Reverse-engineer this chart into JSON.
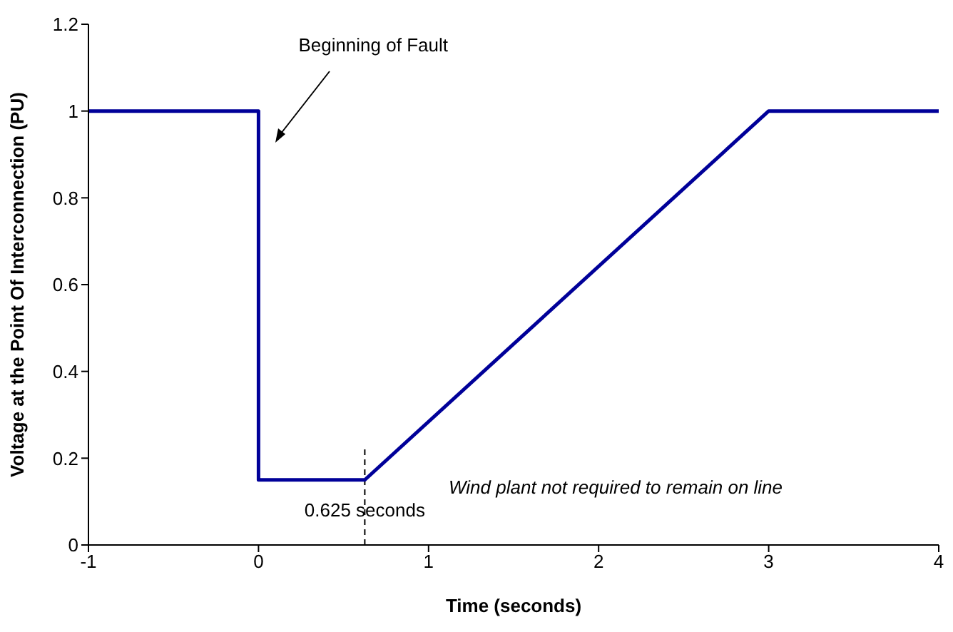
{
  "chart_data": {
    "type": "line",
    "xlabel": "Time (seconds)",
    "ylabel": "Voltage at the Point Of Interconnection (PU)",
    "x": [
      -1,
      0,
      0,
      0.625,
      3,
      4
    ],
    "series": [
      {
        "color": "#000099",
        "values": [
          1,
          1,
          0.15,
          0.15,
          1,
          1
        ]
      }
    ],
    "xlim": [
      -1,
      4
    ],
    "xticks": [
      -1,
      0,
      1,
      2,
      3,
      4
    ],
    "ylim": [
      0,
      1.2
    ],
    "yticks": [
      0,
      0.2,
      0.4,
      0.6,
      0.8,
      1,
      1.2
    ],
    "grid": false,
    "legend": false,
    "marker": "none",
    "line_style": "solid",
    "ref_lines": [
      {
        "axis": "x",
        "value": 0.625,
        "label": "0.625 seconds",
        "line_style": "dashed",
        "color": "#000000"
      }
    ],
    "annotations": [
      "Beginning of Fault",
      "Wind plant not required to remain on line"
    ]
  }
}
